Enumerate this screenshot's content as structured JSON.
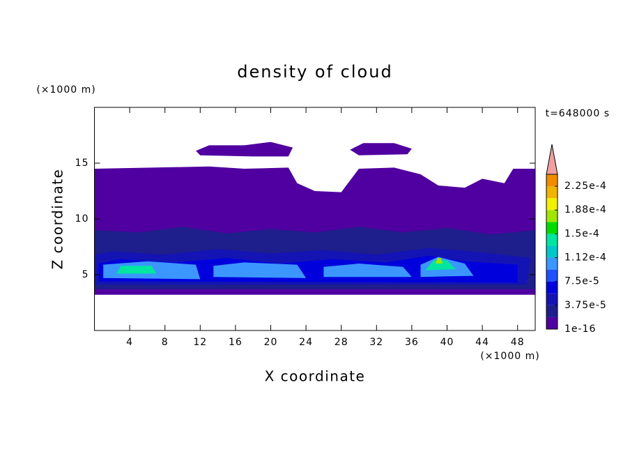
{
  "chart_data": {
    "type": "contour",
    "title": "density of cloud",
    "xlabel": "X coordinate",
    "ylabel": "Z coordinate",
    "xunit": "(×1000 m)",
    "yunit": "(×1000 m)",
    "annotation": "t=648000 s",
    "xlim": [
      0,
      50
    ],
    "ylim": [
      0,
      20
    ],
    "xticks": [
      4,
      8,
      12,
      16,
      20,
      24,
      28,
      32,
      36,
      40,
      44,
      48
    ],
    "yticks": [
      5,
      10,
      15
    ],
    "colorbar": {
      "lim": [
        1e-16,
        0.00024375
      ],
      "levels": [
        1e-16,
        1.875e-05,
        3.75e-05,
        5.625e-05,
        7.5e-05,
        9.375e-05,
        0.0001125,
        0.00013125,
        0.00015,
        0.00016875,
        0.0001875,
        0.00020625,
        0.000225
      ],
      "colors": [
        "#5000a0",
        "#1e1e8c",
        "#1414b4",
        "#0000dc",
        "#1e50ff",
        "#3c96ff",
        "#00c8c8",
        "#00e6a0",
        "#00dc00",
        "#a0e600",
        "#f0f000",
        "#f0b400",
        "#f08c00",
        "#f05000",
        "#f01e00"
      ],
      "ticks": [
        {
          "value": 1e-16,
          "label": "1e-16"
        },
        {
          "value": 3.75e-05,
          "label": "3.75e-5"
        },
        {
          "value": 7.5e-05,
          "label": "7.5e-5"
        },
        {
          "value": 0.0001125,
          "label": "1.12e-4"
        },
        {
          "value": 0.00015,
          "label": "1.5e-4"
        },
        {
          "value": 0.0001875,
          "label": "1.88e-4"
        },
        {
          "value": 0.000225,
          "label": "2.25e-4"
        }
      ],
      "extend_color": "#f0a0a0"
    },
    "regions": [
      {
        "value": 1e-16,
        "points": [
          [
            0,
            3.2
          ],
          [
            50,
            3.2
          ],
          [
            50,
            14.5
          ],
          [
            47.5,
            14.5
          ],
          [
            46.5,
            13.2
          ],
          [
            44,
            13.6
          ],
          [
            42,
            12.8
          ],
          [
            39,
            13
          ],
          [
            37,
            14
          ],
          [
            34,
            14.6
          ],
          [
            30,
            14.5
          ],
          [
            28,
            12.4
          ],
          [
            25,
            12.5
          ],
          [
            23,
            13.2
          ],
          [
            22,
            14.6
          ],
          [
            17,
            14.5
          ],
          [
            13,
            14.7
          ],
          [
            0,
            14.5
          ]
        ]
      },
      {
        "value": 1e-16,
        "points": [
          [
            11.5,
            16.1
          ],
          [
            13,
            16.6
          ],
          [
            17,
            16.6
          ],
          [
            20,
            16.9
          ],
          [
            22.5,
            16.4
          ],
          [
            22,
            15.6
          ],
          [
            18,
            15.6
          ],
          [
            12,
            15.7
          ]
        ]
      },
      {
        "value": 1e-16,
        "points": [
          [
            29,
            16.2
          ],
          [
            30.5,
            16.8
          ],
          [
            34,
            16.8
          ],
          [
            36,
            16.3
          ],
          [
            35.5,
            15.8
          ],
          [
            30,
            15.7
          ]
        ]
      },
      {
        "value": 1.875e-05,
        "points": [
          [
            0,
            3.7
          ],
          [
            50,
            3.7
          ],
          [
            50,
            9
          ],
          [
            45,
            8.6
          ],
          [
            40,
            9.2
          ],
          [
            35,
            8.8
          ],
          [
            30,
            9.3
          ],
          [
            25,
            8.8
          ],
          [
            20,
            9.1
          ],
          [
            15,
            8.7
          ],
          [
            10,
            9.3
          ],
          [
            5,
            8.8
          ],
          [
            0,
            9
          ]
        ]
      },
      {
        "value": 3.75e-05,
        "points": [
          [
            0,
            4.1
          ],
          [
            49,
            4.1
          ],
          [
            49.5,
            6.5
          ],
          [
            44,
            7
          ],
          [
            38,
            7.4
          ],
          [
            32,
            6.8
          ],
          [
            26,
            7.2
          ],
          [
            20,
            6.9
          ],
          [
            14,
            7.3
          ],
          [
            8,
            6.8
          ],
          [
            2,
            7.1
          ],
          [
            0,
            6.8
          ]
        ]
      },
      {
        "value": 5.625e-05,
        "points": [
          [
            0.5,
            4.4
          ],
          [
            48,
            4.3
          ],
          [
            48,
            5.9
          ],
          [
            42,
            6.2
          ],
          [
            38,
            6.7
          ],
          [
            33,
            6.1
          ],
          [
            27,
            6.4
          ],
          [
            21,
            6
          ],
          [
            15,
            6.5
          ],
          [
            9,
            6.1
          ],
          [
            3,
            6.4
          ],
          [
            0.5,
            6
          ]
        ]
      },
      {
        "value": 9.375e-05,
        "points": [
          [
            1,
            4.7
          ],
          [
            12,
            4.6
          ],
          [
            11.5,
            5.9
          ],
          [
            6,
            6.2
          ],
          [
            1,
            5.9
          ]
        ]
      },
      {
        "value": 9.375e-05,
        "points": [
          [
            13.5,
            4.8
          ],
          [
            24,
            4.7
          ],
          [
            23,
            5.9
          ],
          [
            17,
            6.1
          ],
          [
            13.5,
            5.8
          ]
        ]
      },
      {
        "value": 9.375e-05,
        "points": [
          [
            26,
            4.8
          ],
          [
            36,
            4.8
          ],
          [
            35,
            5.7
          ],
          [
            30,
            6
          ],
          [
            26,
            5.7
          ]
        ]
      },
      {
        "value": 9.375e-05,
        "points": [
          [
            37,
            4.8
          ],
          [
            43,
            4.9
          ],
          [
            42,
            6
          ],
          [
            39,
            6.6
          ],
          [
            37,
            5.9
          ]
        ]
      },
      {
        "value": 0.00013125,
        "points": [
          [
            2.5,
            5.1
          ],
          [
            7,
            5.1
          ],
          [
            6.5,
            5.8
          ],
          [
            3,
            5.8
          ]
        ]
      },
      {
        "value": 0.00013125,
        "points": [
          [
            37.5,
            5.4
          ],
          [
            41,
            5.5
          ],
          [
            40,
            6.3
          ],
          [
            38.5,
            6.3
          ]
        ]
      },
      {
        "value": 0.00016875,
        "points": [
          [
            38.7,
            6
          ],
          [
            39.5,
            6
          ],
          [
            39.3,
            6.5
          ],
          [
            38.9,
            6.5
          ]
        ]
      }
    ]
  }
}
